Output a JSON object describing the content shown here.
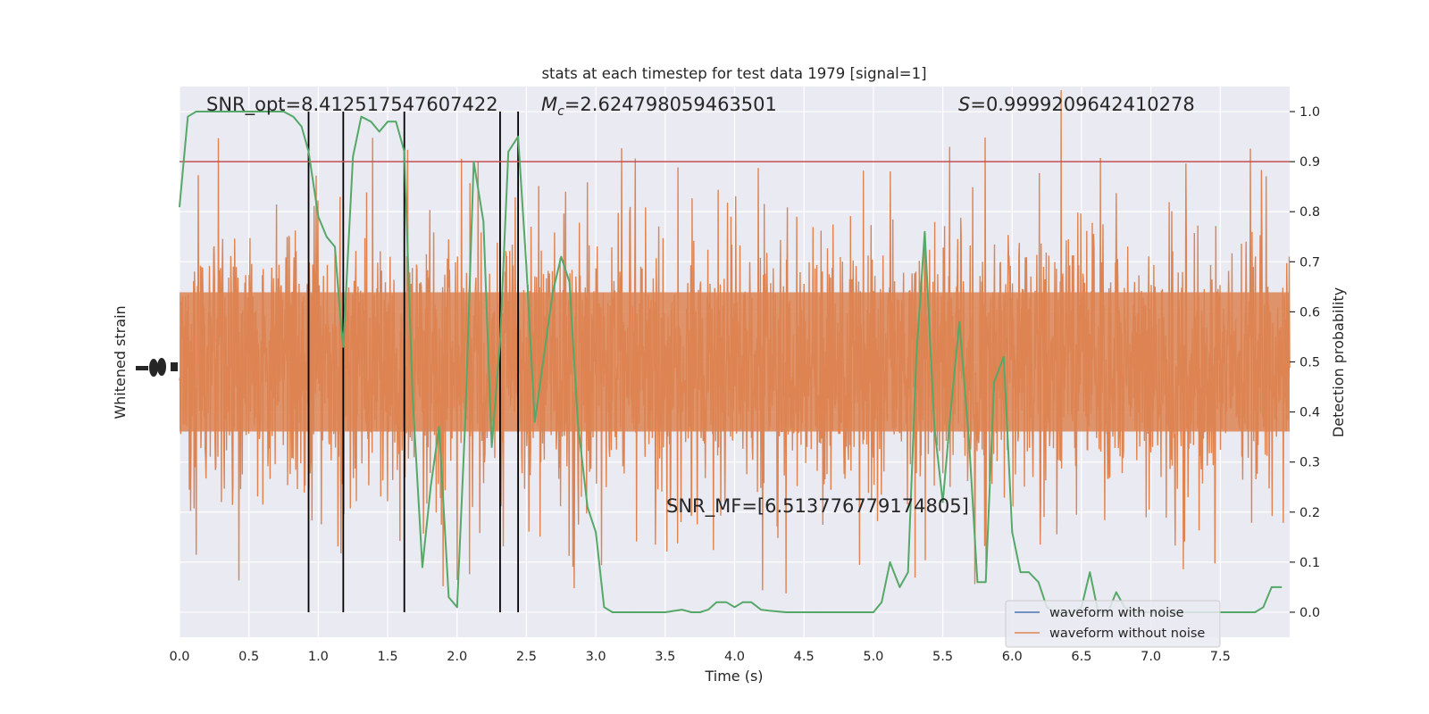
{
  "chart_data": {
    "type": "line",
    "title": "stats at each timestep for test data 1979 [signal=1]",
    "xlabel": "Time (s)",
    "ylabel_left": "Whitened strain",
    "ylabel_right": "Detection probability",
    "xlim": [
      0,
      8.0
    ],
    "ylim_right": [
      -0.05,
      1.05
    ],
    "x_ticks": [
      0.0,
      0.5,
      1.0,
      1.5,
      2.0,
      2.5,
      3.0,
      3.5,
      4.0,
      4.5,
      5.0,
      5.5,
      6.0,
      6.5,
      7.0,
      7.5
    ],
    "x_tick_labels": [
      "0.0",
      "0.5",
      "1.0",
      "1.5",
      "2.0",
      "2.5",
      "3.0",
      "3.5",
      "4.0",
      "4.5",
      "5.0",
      "5.5",
      "6.0",
      "6.5",
      "7.0",
      "7.5"
    ],
    "y_ticks_right": [
      0.0,
      0.1,
      0.2,
      0.3,
      0.4,
      0.5,
      0.6,
      0.7,
      0.8,
      0.9,
      1.0
    ],
    "y_tick_labels_right": [
      "0.0",
      "0.1",
      "0.2",
      "0.3",
      "0.4",
      "0.5",
      "0.6",
      "0.7",
      "0.8",
      "0.9",
      "1.0"
    ],
    "grid": true,
    "legend_placement": "lower-right",
    "threshold": 0.9,
    "vertical_markers": [
      0.93,
      1.18,
      1.62,
      2.31,
      2.44
    ],
    "annotations": {
      "snr_opt": "SNR_opt=8.412517547607422",
      "mc_symbol": "M",
      "mc_subscript": "c",
      "mc_value": "=2.624798059463501",
      "s_symbol": "S",
      "s_value": "=0.9999209642410278",
      "snr_mf": "SNR_MF=[6.513776779174805]"
    },
    "series": [
      {
        "name": "waveform with noise",
        "color": "#4c72b0"
      },
      {
        "name": "waveform without noise",
        "color": "#dd8452"
      },
      {
        "color": "#55a868",
        "axis": "right",
        "x": [
          0.0,
          0.06,
          0.12,
          0.2,
          0.3,
          0.4,
          0.5,
          0.6,
          0.7,
          0.75,
          0.82,
          0.88,
          0.93,
          1.0,
          1.06,
          1.12,
          1.15,
          1.18,
          1.25,
          1.31,
          1.38,
          1.44,
          1.5,
          1.56,
          1.62,
          1.68,
          1.75,
          1.81,
          1.87,
          1.94,
          2.0,
          2.06,
          2.12,
          2.19,
          2.25,
          2.31,
          2.37,
          2.44,
          2.5,
          2.56,
          2.62,
          2.69,
          2.75,
          2.81,
          2.87,
          2.94,
          3.0,
          3.06,
          3.12,
          3.25,
          3.5,
          3.62,
          3.69,
          3.75,
          3.81,
          3.87,
          3.94,
          4.0,
          4.06,
          4.12,
          4.19,
          4.25,
          4.37,
          4.5,
          4.62,
          4.75,
          5.0,
          5.06,
          5.12,
          5.19,
          5.25,
          5.31,
          5.37,
          5.44,
          5.5,
          5.56,
          5.62,
          5.69,
          5.75,
          5.81,
          5.87,
          5.94,
          6.0,
          6.06,
          6.12,
          6.19,
          6.25,
          6.31,
          6.37,
          6.44,
          6.5,
          6.56,
          6.62,
          6.69,
          6.75,
          6.81,
          6.87,
          6.94,
          7.0,
          7.25,
          7.5,
          7.62,
          7.69,
          7.75,
          7.81,
          7.87,
          7.94
        ],
        "values": [
          0.81,
          0.99,
          1.0,
          1.0,
          1.0,
          1.0,
          1.0,
          1.0,
          1.0,
          1.0,
          0.99,
          0.97,
          0.92,
          0.79,
          0.75,
          0.73,
          0.62,
          0.53,
          0.91,
          0.99,
          0.98,
          0.96,
          0.98,
          0.98,
          0.92,
          0.43,
          0.09,
          0.25,
          0.37,
          0.03,
          0.01,
          0.39,
          0.9,
          0.78,
          0.33,
          0.54,
          0.92,
          0.95,
          0.69,
          0.38,
          0.5,
          0.64,
          0.71,
          0.66,
          0.38,
          0.21,
          0.16,
          0.01,
          0.0,
          0.0,
          0.0,
          0.005,
          0.0,
          0.0,
          0.005,
          0.02,
          0.02,
          0.01,
          0.02,
          0.02,
          0.005,
          0.003,
          0.0,
          0.0,
          0.0,
          0.0,
          0.0,
          0.02,
          0.1,
          0.05,
          0.08,
          0.51,
          0.76,
          0.37,
          0.22,
          0.41,
          0.58,
          0.34,
          0.06,
          0.06,
          0.46,
          0.51,
          0.16,
          0.08,
          0.08,
          0.06,
          0.01,
          0.0,
          0.0,
          0.0,
          0.01,
          0.08,
          0.0,
          0.0,
          0.04,
          0.01,
          0.0,
          0.0,
          0.0,
          0.0,
          0.0,
          0.0,
          0.0,
          0.0,
          0.01,
          0.05,
          0.05
        ]
      }
    ]
  }
}
